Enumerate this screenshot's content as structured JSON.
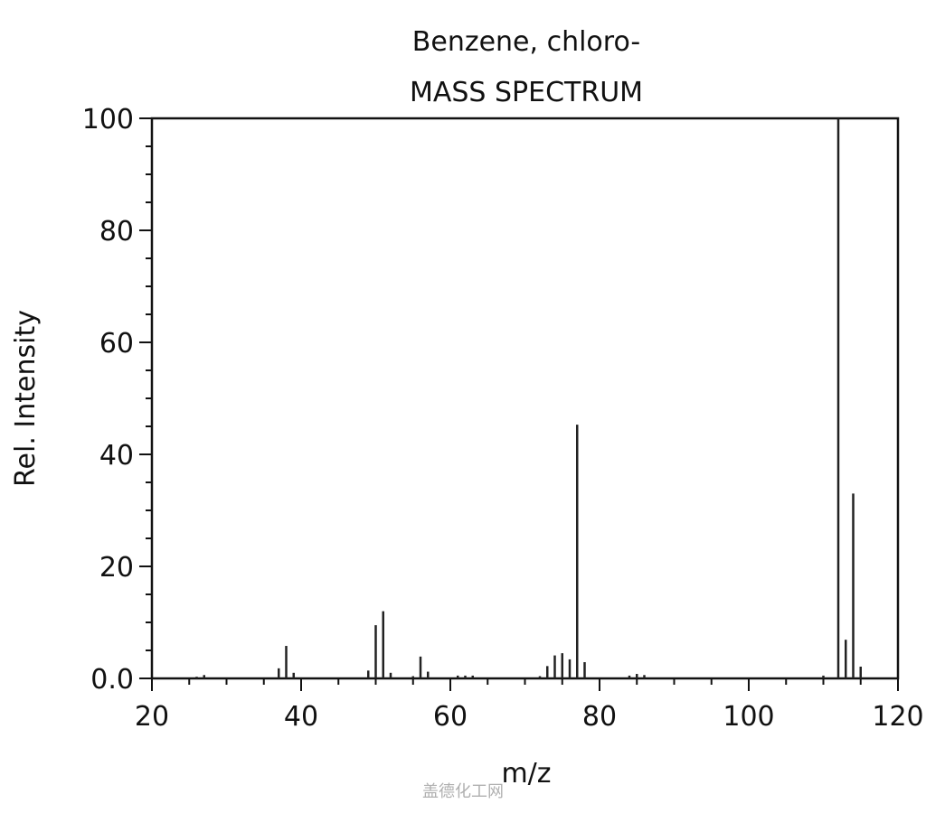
{
  "chart_data": {
    "type": "bar",
    "title": "Benzene, chloro-",
    "subtitle": "MASS SPECTRUM",
    "xlabel": "m/z",
    "ylabel": "Rel. Intensity",
    "xlim": [
      20,
      120
    ],
    "ylim": [
      0,
      100
    ],
    "x_ticks": [
      "20",
      "40",
      "60",
      "80",
      "100",
      "120"
    ],
    "y_ticks": [
      "0.0",
      "20",
      "40",
      "60",
      "80",
      "100"
    ],
    "x_tick_values": [
      20,
      40,
      60,
      80,
      100,
      120
    ],
    "y_tick_values": [
      0,
      20,
      40,
      60,
      80,
      100
    ],
    "grid": false,
    "peaks": [
      {
        "mz": 26,
        "intensity": 0.3
      },
      {
        "mz": 27,
        "intensity": 0.6
      },
      {
        "mz": 37,
        "intensity": 1.8
      },
      {
        "mz": 38,
        "intensity": 5.8
      },
      {
        "mz": 39,
        "intensity": 1.0
      },
      {
        "mz": 49,
        "intensity": 1.4
      },
      {
        "mz": 50,
        "intensity": 9.5
      },
      {
        "mz": 51,
        "intensity": 12.0
      },
      {
        "mz": 52,
        "intensity": 1.0
      },
      {
        "mz": 55,
        "intensity": 0.4
      },
      {
        "mz": 56,
        "intensity": 3.9
      },
      {
        "mz": 57,
        "intensity": 1.2
      },
      {
        "mz": 61,
        "intensity": 0.5
      },
      {
        "mz": 62,
        "intensity": 0.5
      },
      {
        "mz": 63,
        "intensity": 0.5
      },
      {
        "mz": 72,
        "intensity": 0.4
      },
      {
        "mz": 73,
        "intensity": 2.2
      },
      {
        "mz": 74,
        "intensity": 4.1
      },
      {
        "mz": 75,
        "intensity": 4.5
      },
      {
        "mz": 76,
        "intensity": 3.4
      },
      {
        "mz": 77,
        "intensity": 45.3
      },
      {
        "mz": 78,
        "intensity": 2.9
      },
      {
        "mz": 84,
        "intensity": 0.5
      },
      {
        "mz": 85,
        "intensity": 0.8
      },
      {
        "mz": 86,
        "intensity": 0.6
      },
      {
        "mz": 110,
        "intensity": 0.5
      },
      {
        "mz": 112,
        "intensity": 100
      },
      {
        "mz": 113,
        "intensity": 6.9
      },
      {
        "mz": 114,
        "intensity": 33.0
      },
      {
        "mz": 115,
        "intensity": 2.1
      }
    ]
  },
  "watermark": "盖德化工网"
}
